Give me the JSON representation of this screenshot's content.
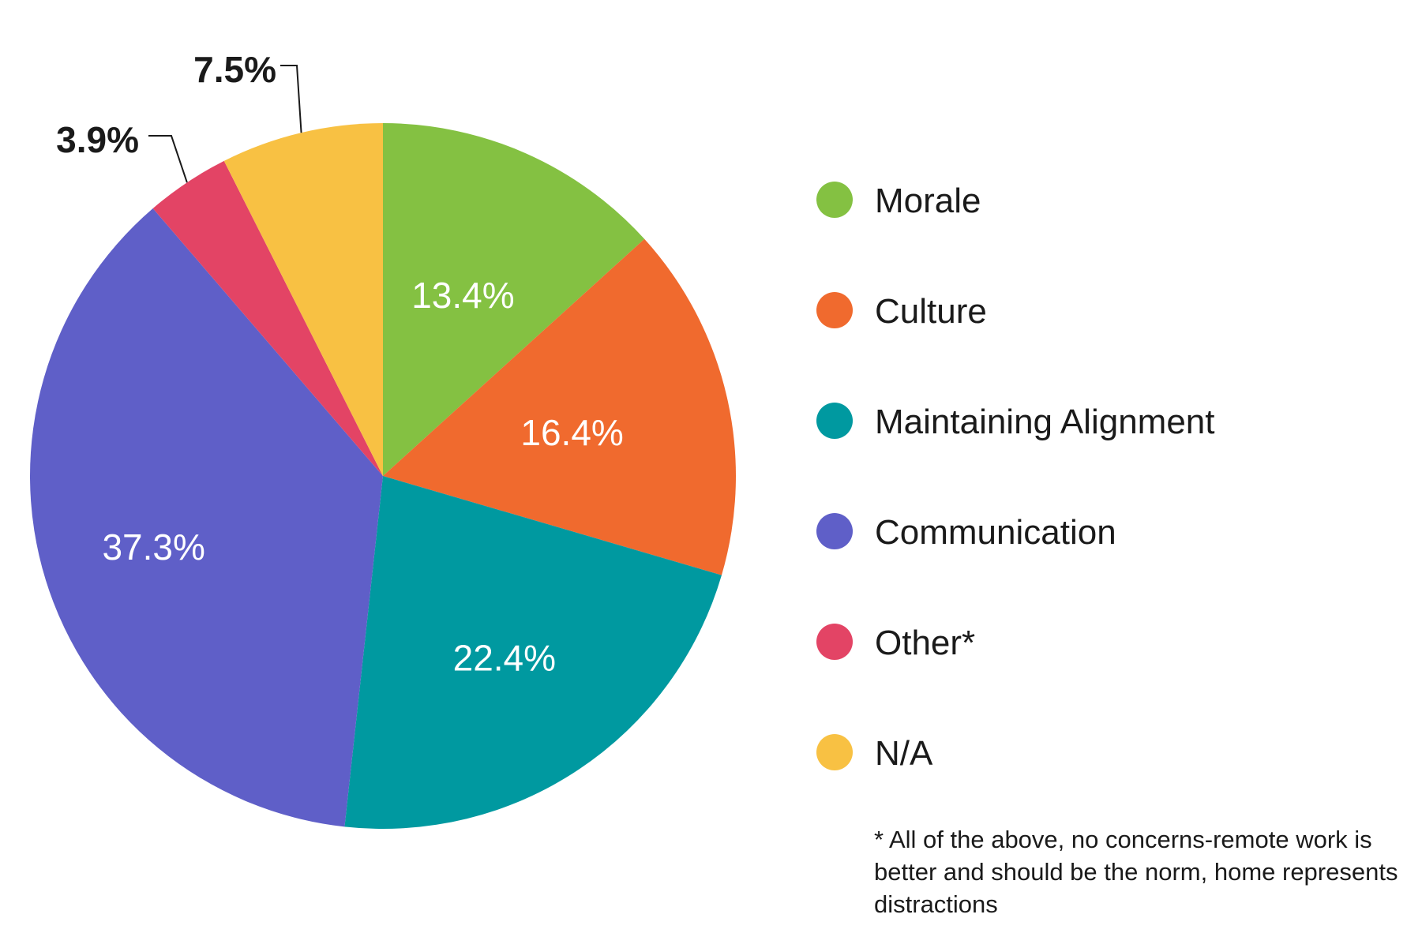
{
  "chart_data": {
    "type": "pie",
    "slices": [
      {
        "name": "Morale",
        "value": 13.4,
        "label": "13.4%",
        "color": "#84c142"
      },
      {
        "name": "Culture",
        "value": 16.4,
        "label": "16.4%",
        "color": "#f06a2e"
      },
      {
        "name": "Maintaining Alignment",
        "value": 22.4,
        "label": "22.4%",
        "color": "#0099a0"
      },
      {
        "name": "Communication",
        "value": 37.3,
        "label": "37.3%",
        "color": "#5f5fc8"
      },
      {
        "name": "Other*",
        "value": 3.9,
        "label": "3.9%",
        "color": "#e34465"
      },
      {
        "name": "N/A",
        "value": 7.5,
        "label": "7.5%",
        "color": "#f8c143"
      }
    ],
    "legend_position": "right",
    "footnote": "* All of the above, no concerns-remote work is better and should be the norm, home represents distractions"
  }
}
